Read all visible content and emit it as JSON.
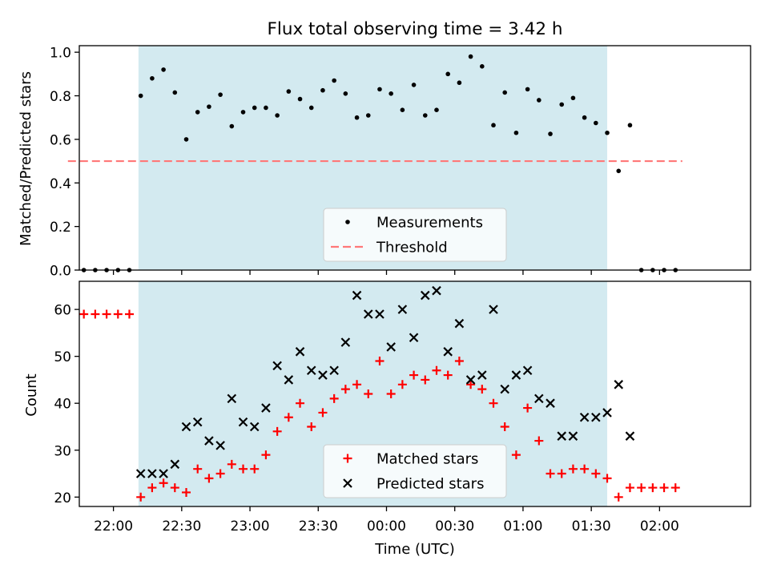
{
  "chart_data": [
    {
      "type": "scatter",
      "title": "Flux total observing time = 3.42 h",
      "xlabel": "",
      "ylabel": "Matched/Predicted stars",
      "ylim": [
        0,
        1.03
      ],
      "yticks": [
        "0.0",
        "0.2",
        "0.4",
        "0.6",
        "0.8",
        "1.0"
      ],
      "xlim": [
        "21:45",
        "02:40"
      ],
      "shaded_region": {
        "from": "22:11",
        "to": "01:37",
        "color": "#d3eaf0"
      },
      "threshold": {
        "y": 0.5,
        "from": "21:40",
        "to": "02:10",
        "color": "#ff7878"
      },
      "legend": {
        "position": "lower-center",
        "entries": [
          "Measurements",
          "Threshold"
        ]
      },
      "series": [
        {
          "name": "Measurements",
          "marker": "dot",
          "color": "#000000",
          "points": [
            [
              "21:47",
              0.0
            ],
            [
              "21:52",
              0.0
            ],
            [
              "21:57",
              0.0
            ],
            [
              "22:02",
              0.0
            ],
            [
              "22:07",
              0.0
            ],
            [
              "22:12",
              0.8
            ],
            [
              "22:17",
              0.88
            ],
            [
              "22:22",
              0.92
            ],
            [
              "22:27",
              0.815
            ],
            [
              "22:32",
              0.6
            ],
            [
              "22:37",
              0.725
            ],
            [
              "22:42",
              0.75
            ],
            [
              "22:47",
              0.805
            ],
            [
              "22:52",
              0.66
            ],
            [
              "22:57",
              0.725
            ],
            [
              "23:02",
              0.745
            ],
            [
              "23:07",
              0.745
            ],
            [
              "23:12",
              0.71
            ],
            [
              "23:17",
              0.82
            ],
            [
              "23:22",
              0.785
            ],
            [
              "23:27",
              0.745
            ],
            [
              "23:32",
              0.825
            ],
            [
              "23:37",
              0.87
            ],
            [
              "23:42",
              0.81
            ],
            [
              "23:47",
              0.7
            ],
            [
              "23:52",
              0.71
            ],
            [
              "23:57",
              0.83
            ],
            [
              "00:02",
              0.81
            ],
            [
              "00:07",
              0.735
            ],
            [
              "00:12",
              0.85
            ],
            [
              "00:17",
              0.71
            ],
            [
              "00:22",
              0.735
            ],
            [
              "00:27",
              0.9
            ],
            [
              "00:32",
              0.86
            ],
            [
              "00:37",
              0.98
            ],
            [
              "00:42",
              0.935
            ],
            [
              "00:47",
              0.665
            ],
            [
              "00:52",
              0.815
            ],
            [
              "00:57",
              0.63
            ],
            [
              "01:02",
              0.83
            ],
            [
              "01:07",
              0.78
            ],
            [
              "01:12",
              0.625
            ],
            [
              "01:17",
              0.76
            ],
            [
              "01:22",
              0.79
            ],
            [
              "01:27",
              0.7
            ],
            [
              "01:32",
              0.675
            ],
            [
              "01:37",
              0.63
            ],
            [
              "01:42",
              0.455
            ],
            [
              "01:47",
              0.665
            ],
            [
              "01:52",
              0.0
            ],
            [
              "01:57",
              0.0
            ],
            [
              "02:02",
              0.0
            ],
            [
              "02:07",
              0.0
            ]
          ]
        }
      ]
    },
    {
      "type": "scatter",
      "title": "",
      "xlabel": "Time (UTC)",
      "ylabel": "Count",
      "ylim": [
        18,
        66
      ],
      "yticks": [
        "20",
        "30",
        "40",
        "50",
        "60"
      ],
      "xticks": [
        "22:00",
        "22:30",
        "23:00",
        "23:30",
        "00:00",
        "00:30",
        "01:00",
        "01:30",
        "02:00"
      ],
      "xlim": [
        "21:45",
        "02:40"
      ],
      "shaded_region": {
        "from": "22:11",
        "to": "01:37",
        "color": "#d3eaf0"
      },
      "legend": {
        "position": "lower-center",
        "entries": [
          "Matched stars",
          "Predicted stars"
        ]
      },
      "series": [
        {
          "name": "Matched stars",
          "marker": "plus",
          "color": "#ff0000",
          "points": [
            [
              "21:47",
              59
            ],
            [
              "21:52",
              59
            ],
            [
              "21:57",
              59
            ],
            [
              "22:02",
              59
            ],
            [
              "22:07",
              59
            ],
            [
              "22:12",
              20
            ],
            [
              "22:17",
              22
            ],
            [
              "22:22",
              23
            ],
            [
              "22:27",
              22
            ],
            [
              "22:32",
              21
            ],
            [
              "22:37",
              26
            ],
            [
              "22:42",
              24
            ],
            [
              "22:47",
              25
            ],
            [
              "22:52",
              27
            ],
            [
              "22:57",
              26
            ],
            [
              "23:02",
              26
            ],
            [
              "23:07",
              29
            ],
            [
              "23:12",
              34
            ],
            [
              "23:17",
              37
            ],
            [
              "23:22",
              40
            ],
            [
              "23:27",
              35
            ],
            [
              "23:32",
              38
            ],
            [
              "23:37",
              41
            ],
            [
              "23:42",
              43
            ],
            [
              "23:47",
              44
            ],
            [
              "23:52",
              42
            ],
            [
              "23:57",
              49
            ],
            [
              "00:02",
              42
            ],
            [
              "00:07",
              44
            ],
            [
              "00:12",
              46
            ],
            [
              "00:17",
              45
            ],
            [
              "00:22",
              47
            ],
            [
              "00:27",
              46
            ],
            [
              "00:32",
              49
            ],
            [
              "00:37",
              44
            ],
            [
              "00:42",
              43
            ],
            [
              "00:47",
              40
            ],
            [
              "00:52",
              35
            ],
            [
              "00:57",
              29
            ],
            [
              "01:02",
              39
            ],
            [
              "01:07",
              32
            ],
            [
              "01:12",
              25
            ],
            [
              "01:17",
              25
            ],
            [
              "01:22",
              26
            ],
            [
              "01:27",
              26
            ],
            [
              "01:32",
              25
            ],
            [
              "01:37",
              24
            ],
            [
              "01:42",
              20
            ],
            [
              "01:47",
              22
            ],
            [
              "01:52",
              22
            ],
            [
              "01:57",
              22
            ],
            [
              "02:02",
              22
            ],
            [
              "02:07",
              22
            ]
          ]
        },
        {
          "name": "Predicted stars",
          "marker": "x",
          "color": "#000000",
          "points": [
            [
              "22:12",
              25
            ],
            [
              "22:17",
              25
            ],
            [
              "22:22",
              25
            ],
            [
              "22:27",
              27
            ],
            [
              "22:32",
              35
            ],
            [
              "22:37",
              36
            ],
            [
              "22:42",
              32
            ],
            [
              "22:47",
              31
            ],
            [
              "22:52",
              41
            ],
            [
              "22:57",
              36
            ],
            [
              "23:02",
              35
            ],
            [
              "23:07",
              39
            ],
            [
              "23:12",
              48
            ],
            [
              "23:17",
              45
            ],
            [
              "23:22",
              51
            ],
            [
              "23:27",
              47
            ],
            [
              "23:32",
              46
            ],
            [
              "23:37",
              47
            ],
            [
              "23:42",
              53
            ],
            [
              "23:47",
              63
            ],
            [
              "23:52",
              59
            ],
            [
              "23:57",
              59
            ],
            [
              "00:02",
              52
            ],
            [
              "00:07",
              60
            ],
            [
              "00:12",
              54
            ],
            [
              "00:17",
              63
            ],
            [
              "00:22",
              64
            ],
            [
              "00:27",
              51
            ],
            [
              "00:32",
              57
            ],
            [
              "00:37",
              45
            ],
            [
              "00:42",
              46
            ],
            [
              "00:47",
              60
            ],
            [
              "00:52",
              43
            ],
            [
              "00:57",
              46
            ],
            [
              "01:02",
              47
            ],
            [
              "01:07",
              41
            ],
            [
              "01:12",
              40
            ],
            [
              "01:17",
              33
            ],
            [
              "01:22",
              33
            ],
            [
              "01:27",
              37
            ],
            [
              "01:32",
              37
            ],
            [
              "01:37",
              38
            ],
            [
              "01:42",
              44
            ],
            [
              "01:47",
              33
            ]
          ]
        }
      ]
    }
  ]
}
